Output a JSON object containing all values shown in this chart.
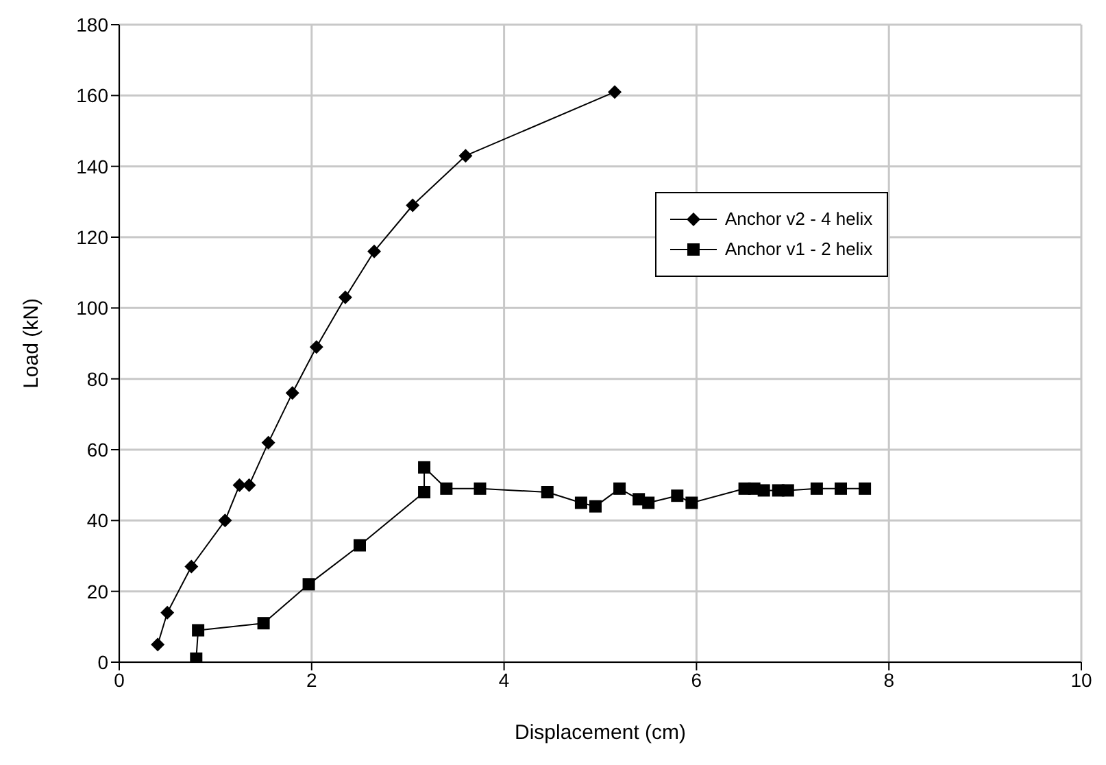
{
  "chart_data": {
    "type": "line",
    "xlabel": "Displacement (cm)",
    "ylabel": "Load (kN)",
    "xlim": [
      0,
      10
    ],
    "xticks": [
      0,
      2,
      4,
      6,
      8,
      10
    ],
    "ylim": [
      0,
      180
    ],
    "yticks": [
      0,
      20,
      40,
      60,
      80,
      100,
      120,
      140,
      160,
      180
    ],
    "grid": true,
    "legend": "right",
    "line_style": "solid",
    "series": [
      {
        "name": "Anchor v2 - 4 helix",
        "color": "#000000",
        "marker": "diamond",
        "x": [
          0.4,
          0.5,
          0.75,
          1.1,
          1.25,
          1.35,
          1.55,
          1.8,
          2.05,
          2.35,
          2.65,
          3.05,
          3.6,
          5.15
        ],
        "values": [
          5,
          14,
          27,
          40,
          50,
          50,
          62,
          76,
          89,
          103,
          116,
          129,
          143,
          161
        ]
      },
      {
        "name": "Anchor v1 - 2 helix",
        "color": "#000000",
        "marker": "square",
        "x": [
          0.8,
          0.82,
          1.5,
          1.97,
          2.5,
          3.17,
          3.17,
          3.4,
          3.75,
          4.45,
          4.8,
          4.95,
          5.2,
          5.4,
          5.5,
          5.8,
          5.95,
          6.5,
          6.6,
          6.7,
          6.85,
          6.95,
          7.25,
          7.5,
          7.75
        ],
        "values": [
          1,
          9,
          11,
          22,
          33,
          48,
          55,
          49,
          49,
          48,
          45,
          44,
          49,
          46,
          45,
          47,
          45,
          49,
          49,
          48.5,
          48.5,
          48.5,
          49,
          49,
          49
        ]
      }
    ]
  }
}
